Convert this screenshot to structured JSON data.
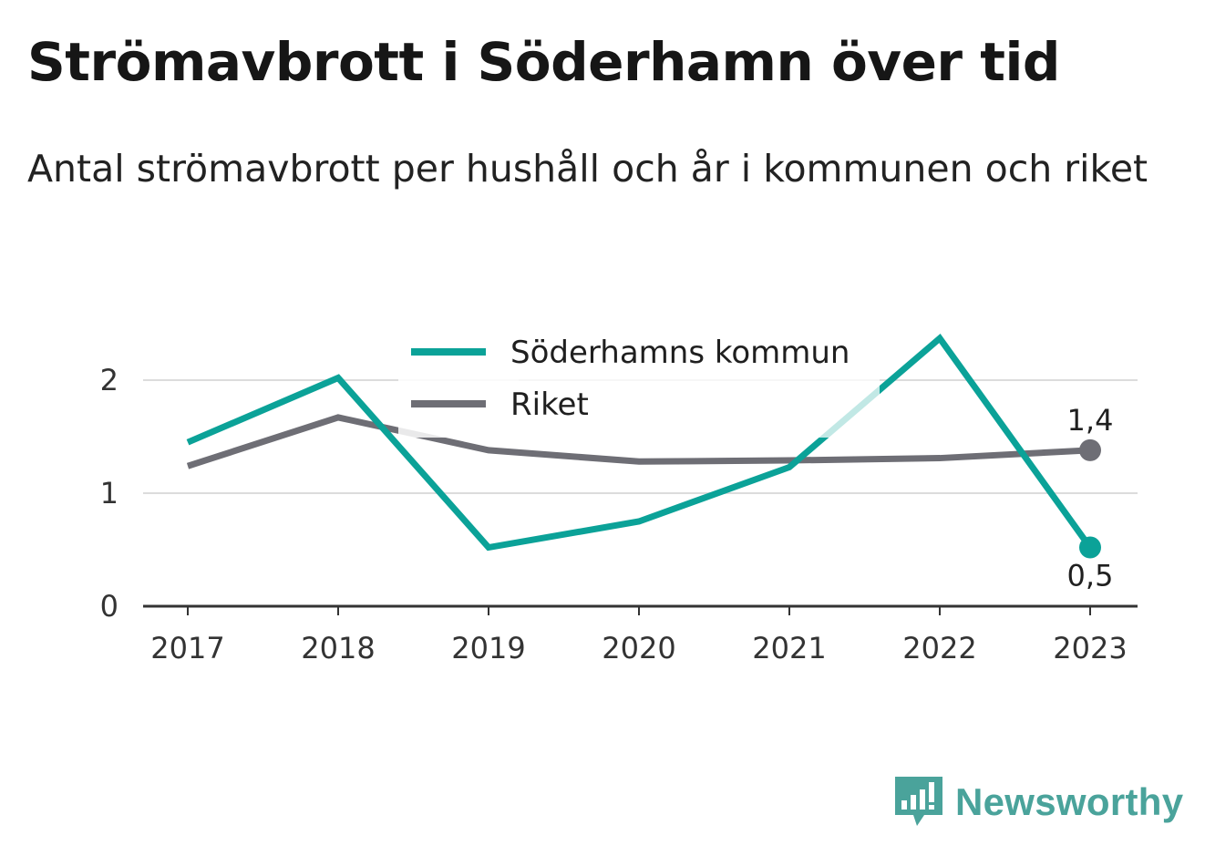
{
  "header": {
    "title": "Strömavbrott i Söderhamn över tid",
    "subtitle": "Antal strömavbrott per hushåll och år i kommunen och riket"
  },
  "brand": {
    "name": "Newsworthy",
    "icon": "bar-chart-speech-bubble-icon",
    "color": "#4aa39b"
  },
  "chart_data": {
    "type": "line",
    "x": [
      "2017",
      "2018",
      "2019",
      "2020",
      "2021",
      "2022",
      "2023"
    ],
    "ylim": [
      0,
      2.5
    ],
    "yticks": [
      "0",
      "1",
      "2"
    ],
    "grid": true,
    "legend_position": "top-center",
    "series": [
      {
        "name": "Söderhamns kommun",
        "color": "#0ba298",
        "values": [
          1.45,
          2.02,
          0.52,
          0.75,
          1.23,
          2.37,
          0.52
        ],
        "end_label": "0,5"
      },
      {
        "name": "Riket",
        "color": "#6e6e75",
        "values": [
          1.24,
          1.67,
          1.38,
          1.28,
          1.29,
          1.31,
          1.38
        ],
        "end_label": "1,4"
      }
    ]
  }
}
